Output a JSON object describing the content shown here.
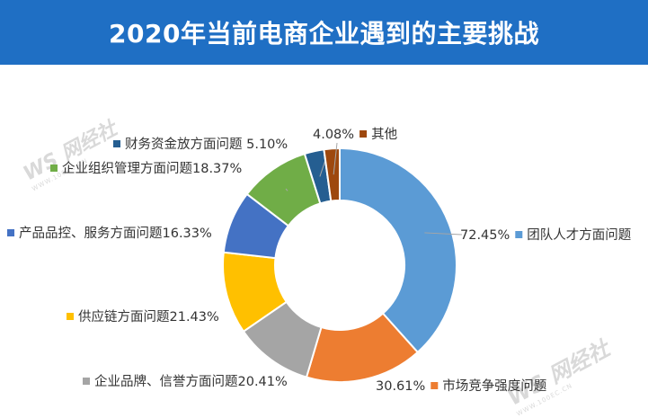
{
  "header": {
    "title": "2020年当前电商企业遇到的主要挑战"
  },
  "watermark": {
    "brand": "网经社",
    "logo": "WS",
    "site": "WWW.100EC.CN"
  },
  "chart_data": {
    "type": "pie",
    "subtype": "donut",
    "title": "2020年当前电商企业遇到的主要挑战",
    "slices": [
      {
        "label": "团队人才方面问题",
        "value_label": "72.45%",
        "value": 72.45,
        "color": "#5b9bd5",
        "side": "right"
      },
      {
        "label": "市场竞争强度问题",
        "value_label": "30.61%",
        "value": 30.61,
        "color": "#ed7d31",
        "side": "right"
      },
      {
        "label": "企业品牌、信誉方面问题",
        "value_label": "20.41%",
        "value": 20.41,
        "color": "#a5a5a5",
        "side": "left"
      },
      {
        "label": "供应链方面问题",
        "value_label": "21.43%",
        "value": 21.43,
        "color": "#ffc000",
        "side": "left"
      },
      {
        "label": "产品品控、服务方面问题",
        "value_label": "16.33%",
        "value": 16.33,
        "color": "#4472c4",
        "side": "left"
      },
      {
        "label": "企业组织管理方面问题",
        "value_label": "18.37%",
        "value": 18.37,
        "color": "#70ad47",
        "side": "left"
      },
      {
        "label": "财务资金放方面问题",
        "value_label": "5.10%",
        "value": 5.1,
        "color": "#255e91",
        "side": "left"
      },
      {
        "label": "其他",
        "value_label": "4.08%",
        "value": 4.08,
        "color": "#9e480e",
        "side": "top"
      }
    ]
  }
}
